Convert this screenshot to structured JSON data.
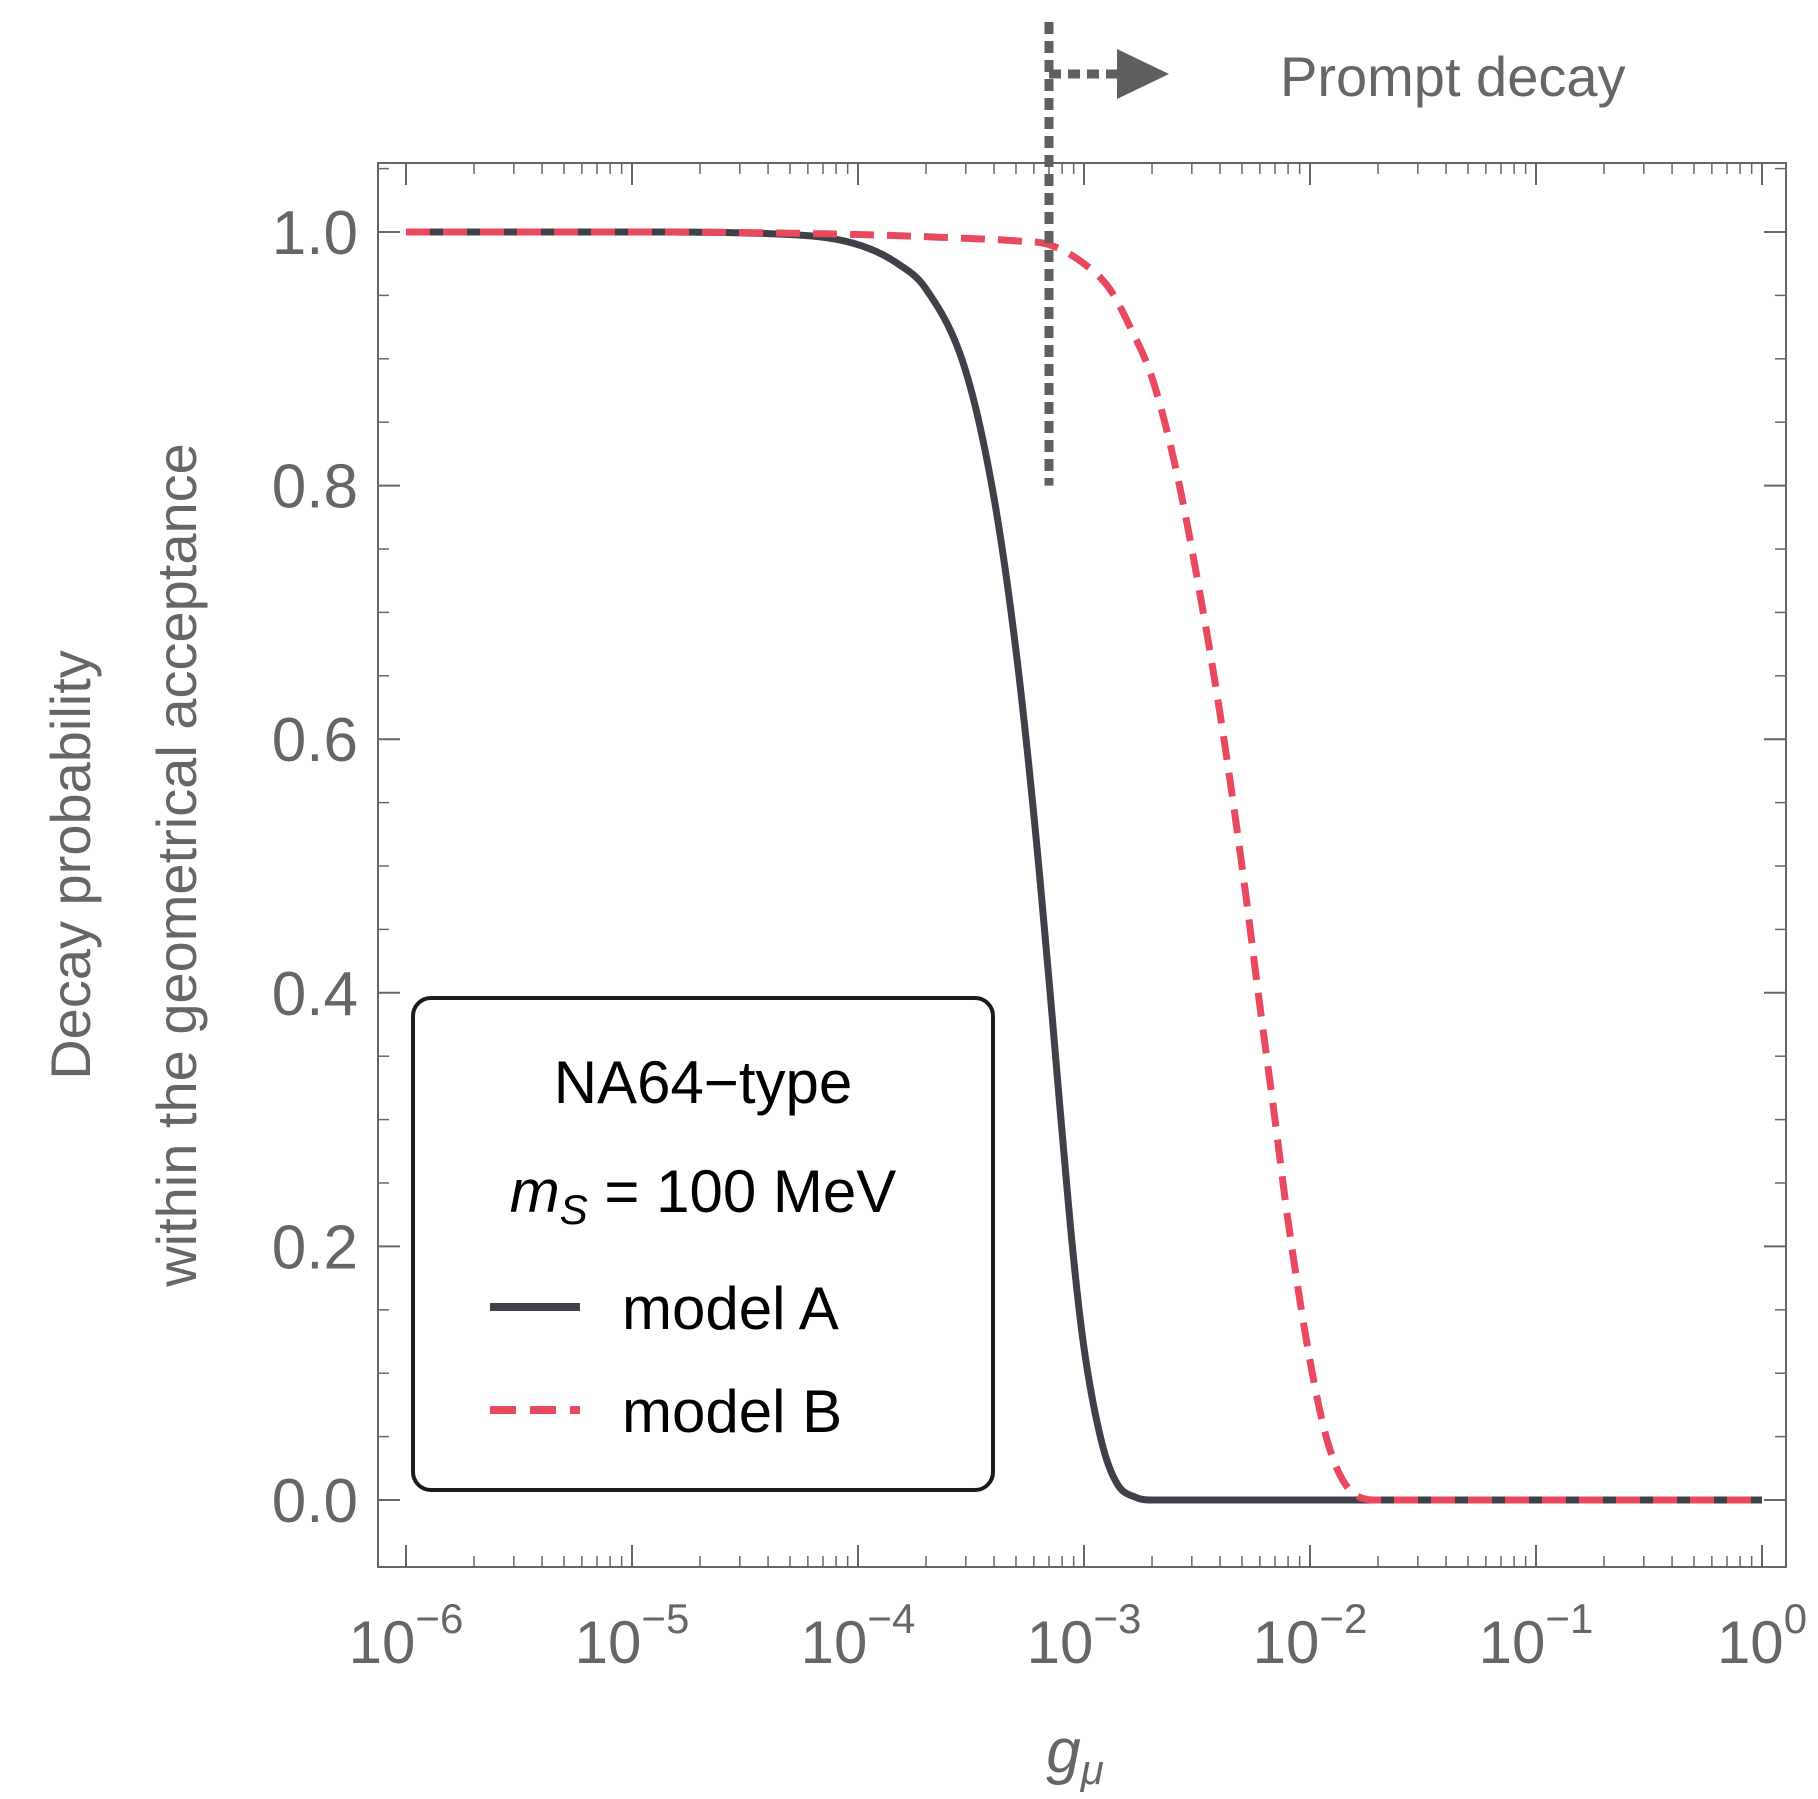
{
  "chart_data": {
    "type": "line",
    "x_scale": "log",
    "xlim": [
      1e-06,
      1
    ],
    "ylim": [
      0.0,
      1.0
    ],
    "xlabel": "g",
    "xlabel_sub": "μ",
    "ylabel_lines": [
      "Decay probability",
      "within the geometrical acceptance"
    ],
    "x_ticks": [
      {
        "value": 1e-06,
        "base": "10",
        "exp": "−6"
      },
      {
        "value": 1e-05,
        "base": "10",
        "exp": "−5"
      },
      {
        "value": 0.0001,
        "base": "10",
        "exp": "−4"
      },
      {
        "value": 0.001,
        "base": "10",
        "exp": "−3"
      },
      {
        "value": 0.01,
        "base": "10",
        "exp": "−2"
      },
      {
        "value": 0.1,
        "base": "10",
        "exp": "−1"
      },
      {
        "value": 1,
        "base": "10",
        "exp": "0"
      }
    ],
    "y_ticks": [
      {
        "value": 0.0,
        "label": "0.0"
      },
      {
        "value": 0.2,
        "label": "0.2"
      },
      {
        "value": 0.4,
        "label": "0.4"
      },
      {
        "value": 0.6,
        "label": "0.6"
      },
      {
        "value": 0.8,
        "label": "0.8"
      },
      {
        "value": 1.0,
        "label": "1.0"
      }
    ],
    "series": [
      {
        "name": "model A",
        "style": "solid",
        "color": "#3f4148",
        "x": [
          1e-06,
          1e-05,
          5e-05,
          0.0001,
          0.00015,
          0.0002,
          0.0003,
          0.0004,
          0.0005,
          0.0006,
          0.0007,
          0.0008,
          0.0009,
          0.001,
          0.0012,
          0.0014,
          0.0017,
          0.002,
          0.003,
          0.01,
          0.1,
          1
        ],
        "y": [
          1.0,
          1.0,
          0.998,
          0.99,
          0.975,
          0.955,
          0.89,
          0.79,
          0.67,
          0.54,
          0.41,
          0.29,
          0.19,
          0.12,
          0.045,
          0.013,
          0.002,
          0.0,
          0.0,
          0.0,
          0.0,
          0.0
        ]
      },
      {
        "name": "model B",
        "style": "dashed",
        "color": "#e8495f",
        "x": [
          1e-06,
          1e-05,
          0.0001,
          0.0003,
          0.0005,
          0.0007,
          0.001,
          0.0013,
          0.0016,
          0.002,
          0.0025,
          0.003,
          0.004,
          0.005,
          0.006,
          0.007,
          0.008,
          0.01,
          0.012,
          0.015,
          0.02,
          0.1,
          1
        ],
        "y": [
          1.0,
          1.0,
          0.998,
          0.995,
          0.993,
          0.99,
          0.975,
          0.955,
          0.925,
          0.885,
          0.82,
          0.75,
          0.62,
          0.5,
          0.39,
          0.3,
          0.22,
          0.11,
          0.045,
          0.008,
          0.0,
          0.0,
          0.0
        ]
      }
    ],
    "prompt_decay": {
      "x": 0.0007,
      "y_from": 0.8,
      "label": "Prompt decay"
    },
    "legend": {
      "position": "bottom-left",
      "title_line1": "NA64−type",
      "title_line2_var": "m",
      "title_line2_sub": "S",
      "title_line2_rest": " = 100 MeV",
      "entries": [
        "model A",
        "model B"
      ]
    },
    "grid": false
  },
  "colors": {
    "frame": "#666666",
    "model_a": "#3f4148",
    "model_b": "#e8495f",
    "prompt_marker": "#5f5f5f"
  }
}
